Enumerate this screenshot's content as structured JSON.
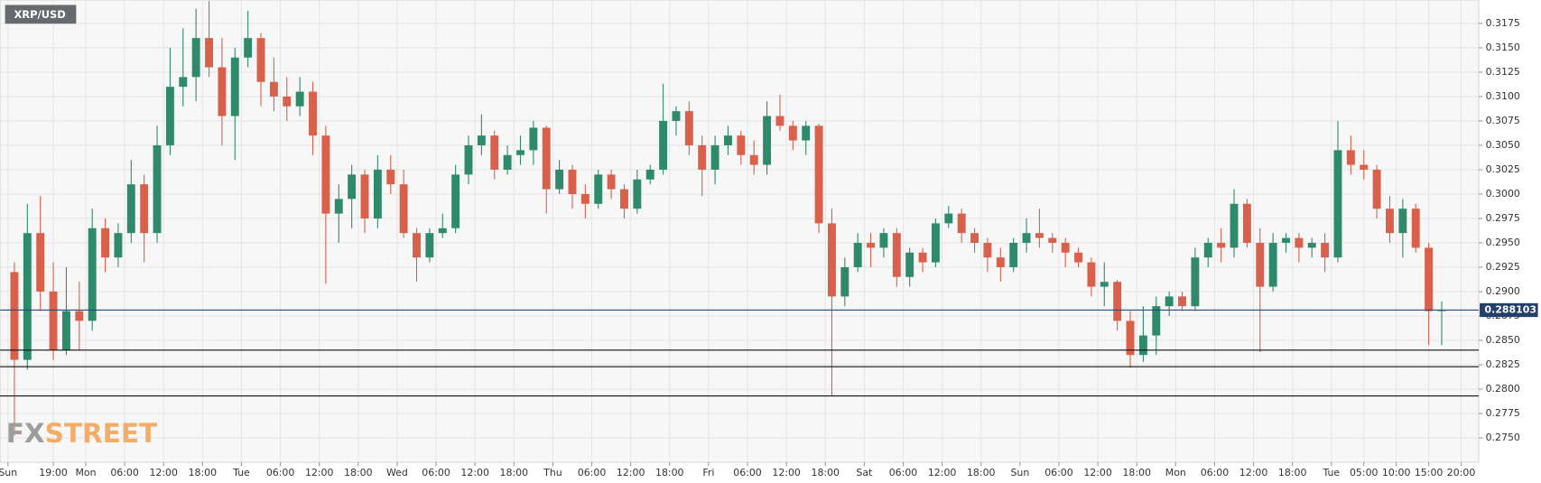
{
  "chart_data": {
    "type": "candlestick",
    "title": "XRP/USD",
    "logo": {
      "fx": "FX",
      "street": "STREET"
    },
    "up_color": "#2f8a6c",
    "down_color": "#d9604a",
    "grid": true,
    "xlim": [
      10.8,
      238.7
    ],
    "ylim": [
      0.2725,
      0.3199
    ],
    "xticks": [
      {
        "value": 12,
        "label": "Sun"
      },
      {
        "value": 19,
        "label": "19:00"
      },
      {
        "value": 24,
        "label": "Mon"
      },
      {
        "value": 30,
        "label": "06:00"
      },
      {
        "value": 36,
        "label": "12:00"
      },
      {
        "value": 42,
        "label": "18:00"
      },
      {
        "value": 48,
        "label": "Tue"
      },
      {
        "value": 54,
        "label": "06:00"
      },
      {
        "value": 60,
        "label": "12:00"
      },
      {
        "value": 66,
        "label": "18:00"
      },
      {
        "value": 72,
        "label": "Wed"
      },
      {
        "value": 78,
        "label": "06:00"
      },
      {
        "value": 84,
        "label": "12:00"
      },
      {
        "value": 90,
        "label": "18:00"
      },
      {
        "value": 96,
        "label": "Thu"
      },
      {
        "value": 102,
        "label": "06:00"
      },
      {
        "value": 108,
        "label": "12:00"
      },
      {
        "value": 114,
        "label": "18:00"
      },
      {
        "value": 120,
        "label": "Fri"
      },
      {
        "value": 126,
        "label": "06:00"
      },
      {
        "value": 132,
        "label": "12:00"
      },
      {
        "value": 138,
        "label": "18:00"
      },
      {
        "value": 144,
        "label": "Sat"
      },
      {
        "value": 150,
        "label": "06:00"
      },
      {
        "value": 156,
        "label": "12:00"
      },
      {
        "value": 162,
        "label": "18:00"
      },
      {
        "value": 168,
        "label": "Sun"
      },
      {
        "value": 174,
        "label": "06:00"
      },
      {
        "value": 180,
        "label": "12:00"
      },
      {
        "value": 186,
        "label": "18:00"
      },
      {
        "value": 192,
        "label": "Mon"
      },
      {
        "value": 198,
        "label": "06:00"
      },
      {
        "value": 204,
        "label": "12:00"
      },
      {
        "value": 210,
        "label": "18:00"
      },
      {
        "value": 216,
        "label": "Tue"
      },
      {
        "value": 221,
        "label": "05:00"
      },
      {
        "value": 226,
        "label": "10:00"
      },
      {
        "value": 231,
        "label": "15:00"
      },
      {
        "value": 236,
        "label": "20:00"
      }
    ],
    "yticks": [
      {
        "value": 0.275,
        "label": "0.2750"
      },
      0.2775,
      {
        "value": 0.28,
        "label": "0.2800"
      },
      0.2825,
      {
        "value": 0.285,
        "label": "0.2850"
      },
      0.2875,
      {
        "value": 0.29,
        "label": "0.2900"
      },
      0.2925,
      {
        "value": 0.295,
        "label": "0.2950"
      },
      0.2975,
      {
        "value": 0.3,
        "label": "0.3000"
      },
      0.3025,
      {
        "value": 0.305,
        "label": "0.3050"
      },
      0.3075,
      {
        "value": 0.31,
        "label": "0.3100"
      },
      0.3125,
      {
        "value": 0.315,
        "label": "0.3150"
      },
      0.3175
    ],
    "last_price": 0.288103,
    "levels": [
      0.284,
      0.2823,
      0.2793
    ],
    "open": [
      0.292,
      0.283,
      0.296,
      0.29,
      0.284,
      0.288,
      0.287,
      0.2965,
      0.2935,
      0.296,
      0.301,
      0.296,
      0.305,
      0.311,
      0.312,
      0.316,
      0.313,
      0.308,
      0.314,
      0.316,
      0.3115,
      0.31,
      0.309,
      0.3105,
      0.306,
      0.298,
      0.2995,
      0.302,
      0.2975,
      0.3025,
      0.301,
      0.296,
      0.2935,
      0.296,
      0.2965,
      0.302,
      0.305,
      0.306,
      0.3025,
      0.304,
      0.3045,
      0.3068,
      0.3005,
      0.3025,
      0.3,
      0.299,
      0.302,
      0.3005,
      0.2985,
      0.3015,
      0.3025,
      0.3075,
      0.3085,
      0.305,
      0.3025,
      0.305,
      0.306,
      0.304,
      0.303,
      0.308,
      0.307,
      0.3055,
      0.307,
      0.297,
      0.2895,
      0.2925,
      0.295,
      0.2945,
      0.296,
      0.2915,
      0.294,
      0.293,
      0.297,
      0.298,
      0.296,
      0.295,
      0.2935,
      0.2925,
      0.295,
      0.296,
      0.2955,
      0.295,
      0.294,
      0.293,
      0.2905,
      0.291,
      0.287,
      0.2835,
      0.2855,
      0.2885,
      0.2895,
      0.2885,
      0.2935,
      0.295,
      0.2945,
      0.299,
      0.295,
      0.2905,
      0.295,
      0.2955,
      0.2945,
      0.295,
      0.2935,
      0.3045,
      0.303,
      0.3025,
      0.2985,
      0.296,
      0.2985,
      0.2945,
      0.288
    ],
    "high": [
      0.293,
      0.299,
      0.2998,
      0.293,
      0.2925,
      0.291,
      0.2985,
      0.2975,
      0.297,
      0.3035,
      0.302,
      0.307,
      0.315,
      0.317,
      0.319,
      0.3198,
      0.316,
      0.315,
      0.3188,
      0.3165,
      0.314,
      0.312,
      0.312,
      0.3115,
      0.307,
      0.301,
      0.303,
      0.3025,
      0.304,
      0.304,
      0.3025,
      0.2965,
      0.2965,
      0.298,
      0.303,
      0.306,
      0.3082,
      0.3065,
      0.305,
      0.306,
      0.3075,
      0.307,
      0.3035,
      0.303,
      0.301,
      0.3025,
      0.3025,
      0.301,
      0.3025,
      0.303,
      0.3113,
      0.309,
      0.3095,
      0.306,
      0.306,
      0.307,
      0.3065,
      0.3055,
      0.3095,
      0.3102,
      0.3075,
      0.3075,
      0.3072,
      0.2985,
      0.2935,
      0.296,
      0.296,
      0.2965,
      0.2965,
      0.2945,
      0.2945,
      0.2975,
      0.2988,
      0.2985,
      0.2965,
      0.2955,
      0.2945,
      0.2955,
      0.2975,
      0.2985,
      0.296,
      0.2955,
      0.2945,
      0.2935,
      0.293,
      0.2912,
      0.288,
      0.2885,
      0.2895,
      0.29,
      0.29,
      0.2945,
      0.2955,
      0.2965,
      0.3005,
      0.2995,
      0.2965,
      0.296,
      0.296,
      0.296,
      0.2955,
      0.296,
      0.3075,
      0.306,
      0.3045,
      0.303,
      0.2998,
      0.2995,
      0.299,
      0.295,
      0.289
    ],
    "low": [
      0.2752,
      0.282,
      0.288,
      0.283,
      0.2835,
      0.284,
      0.286,
      0.292,
      0.2925,
      0.295,
      0.293,
      0.295,
      0.304,
      0.309,
      0.3095,
      0.312,
      0.305,
      0.3035,
      0.313,
      0.309,
      0.3085,
      0.3075,
      0.308,
      0.304,
      0.2908,
      0.295,
      0.2965,
      0.296,
      0.2965,
      0.3,
      0.2955,
      0.291,
      0.293,
      0.2955,
      0.296,
      0.301,
      0.304,
      0.3015,
      0.302,
      0.303,
      0.303,
      0.298,
      0.3,
      0.2985,
      0.2975,
      0.2985,
      0.2995,
      0.2975,
      0.298,
      0.301,
      0.302,
      0.306,
      0.304,
      0.2998,
      0.301,
      0.304,
      0.303,
      0.302,
      0.302,
      0.3065,
      0.3045,
      0.304,
      0.296,
      0.2793,
      0.2885,
      0.292,
      0.2925,
      0.2935,
      0.2905,
      0.2905,
      0.292,
      0.2925,
      0.2965,
      0.295,
      0.294,
      0.292,
      0.291,
      0.292,
      0.294,
      0.2945,
      0.294,
      0.2925,
      0.2925,
      0.2895,
      0.2885,
      0.286,
      0.2822,
      0.2828,
      0.2835,
      0.2875,
      0.288,
      0.288,
      0.2925,
      0.293,
      0.2935,
      0.2945,
      0.2838,
      0.29,
      0.294,
      0.293,
      0.2935,
      0.292,
      0.293,
      0.302,
      0.3015,
      0.2975,
      0.295,
      0.2935,
      0.294,
      0.2845,
      0.2845
    ],
    "close": [
      0.283,
      0.296,
      0.29,
      0.284,
      0.288,
      0.287,
      0.2965,
      0.2935,
      0.296,
      0.301,
      0.296,
      0.305,
      0.311,
      0.312,
      0.316,
      0.313,
      0.308,
      0.314,
      0.316,
      0.3115,
      0.31,
      0.309,
      0.3105,
      0.306,
      0.298,
      0.2995,
      0.302,
      0.2975,
      0.3025,
      0.301,
      0.296,
      0.2935,
      0.296,
      0.2965,
      0.302,
      0.305,
      0.306,
      0.3025,
      0.304,
      0.3045,
      0.3068,
      0.3005,
      0.3025,
      0.3,
      0.299,
      0.302,
      0.3005,
      0.2985,
      0.3015,
      0.3025,
      0.3075,
      0.3085,
      0.305,
      0.3025,
      0.305,
      0.306,
      0.304,
      0.303,
      0.308,
      0.307,
      0.3055,
      0.307,
      0.297,
      0.2895,
      0.2925,
      0.295,
      0.2945,
      0.296,
      0.2915,
      0.294,
      0.293,
      0.297,
      0.298,
      0.296,
      0.295,
      0.2935,
      0.2925,
      0.295,
      0.296,
      0.2955,
      0.295,
      0.294,
      0.293,
      0.2905,
      0.291,
      0.287,
      0.2835,
      0.2855,
      0.2885,
      0.2895,
      0.2885,
      0.2935,
      0.295,
      0.2945,
      0.299,
      0.295,
      0.2905,
      0.295,
      0.2955,
      0.2945,
      0.295,
      0.2935,
      0.3045,
      0.303,
      0.3025,
      0.2985,
      0.296,
      0.2985,
      0.2945,
      0.288,
      0.2881
    ]
  }
}
